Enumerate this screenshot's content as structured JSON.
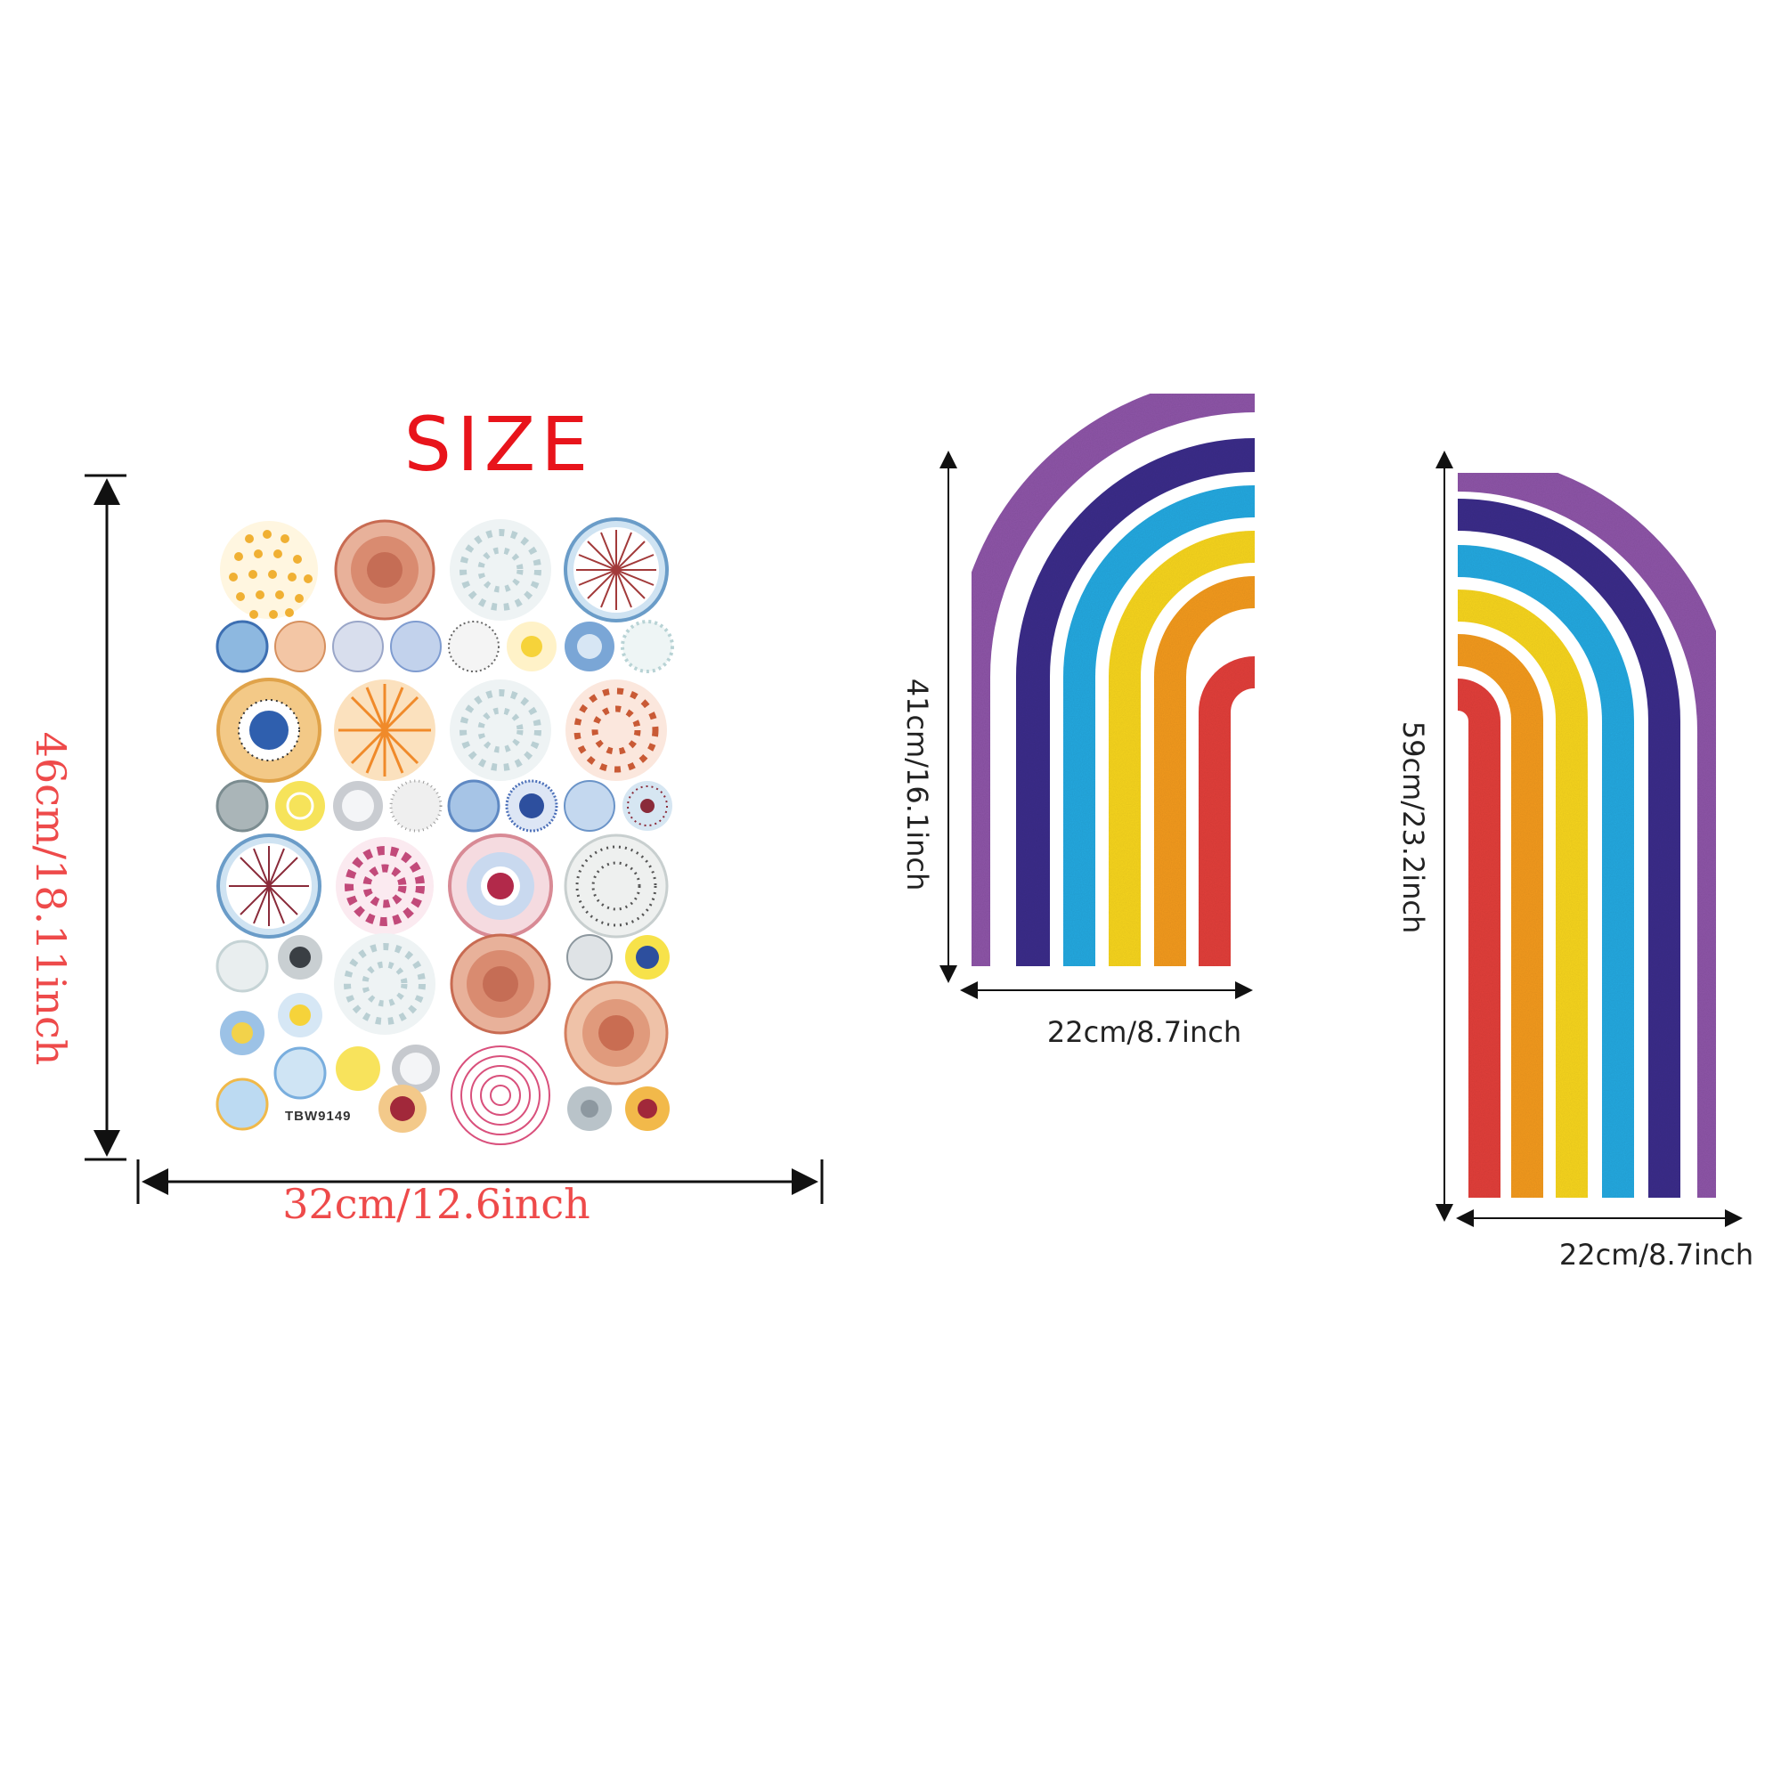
{
  "header": {
    "title": "SIZE"
  },
  "sheet": {
    "code": "TBW9149",
    "width_label": "32cm/12.6inch",
    "height_label": "46cm/18.11inch"
  },
  "rainbow_small": {
    "width_label": "22cm/8.7inch",
    "height_label": "41cm/16.1inch"
  },
  "rainbow_large": {
    "width_label": "22cm/8.7inch",
    "height_label": "59cm/23.2inch"
  },
  "colors": {
    "title": "#e8141b",
    "dimension_red": "#ee4a4a",
    "purple": "#8e55a8",
    "navy": "#3b2c8a",
    "sky": "#25a9e0",
    "yellow": "#f7d51c",
    "orange": "#f39a1c",
    "red": "#e23f3a"
  }
}
